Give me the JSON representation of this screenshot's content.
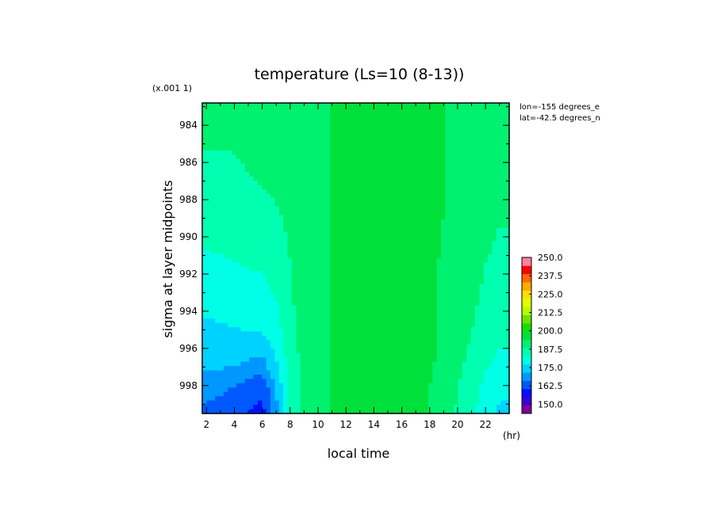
{
  "chart_data": {
    "type": "heatmap",
    "title": "temperature (Ls=10 (8-13))",
    "xlabel": "local time",
    "x_unit": "(hr)",
    "ylabel": "sigma at layer midpoints",
    "y_scale_note": "(x.001 1)",
    "annotations": [
      "lon=-155 degrees_e",
      "lat=-42.5 degrees_n"
    ],
    "x_ticks": [
      "2",
      "4",
      "6",
      "8",
      "10",
      "12",
      "14",
      "16",
      "18",
      "20",
      "22"
    ],
    "y_ticks": [
      "984",
      "986",
      "988",
      "990",
      "992",
      "994",
      "996",
      "998"
    ],
    "xlim": [
      1.7,
      23.7
    ],
    "ylim": [
      982.8,
      999.5
    ],
    "colorbar": {
      "min": 143.75,
      "max": 250,
      "step": 6.25,
      "labels": [
        "250.0",
        "237.5",
        "225.0",
        "212.5",
        "200.0",
        "187.5",
        "175.0",
        "162.5",
        "150.0"
      ],
      "colors": [
        "#7f00a0",
        "#3f00d0",
        "#0010ff",
        "#0058ff",
        "#0098ff",
        "#00d2ff",
        "#00ffe6",
        "#00ffb0",
        "#00f070",
        "#00e03a",
        "#14e000",
        "#6ee000",
        "#b4ff00",
        "#e0ff00",
        "#ffde00",
        "#ffaa00",
        "#ff6a00",
        "#ff0000",
        "#ff80a0"
      ]
    },
    "x": [
      2,
      4,
      6,
      7,
      8,
      9,
      10,
      11,
      12,
      13,
      14,
      15,
      16,
      17,
      18,
      19,
      20,
      21,
      22,
      23
    ],
    "y": [
      983,
      985,
      987,
      989,
      991,
      993,
      995,
      997,
      998,
      999.5
    ],
    "temperature": [
      [
        194,
        194,
        195,
        196,
        197,
        198,
        199,
        200,
        201,
        202,
        203,
        203,
        203,
        203,
        202,
        200,
        199,
        198,
        197,
        196
      ],
      [
        194,
        194,
        195,
        196,
        197,
        198,
        199,
        200,
        201,
        202,
        203,
        203,
        203,
        203,
        202,
        200,
        199,
        198,
        197,
        196
      ],
      [
        192,
        193,
        194,
        195,
        196,
        198,
        199,
        200,
        201,
        202,
        203,
        203,
        203,
        203,
        202,
        200,
        199,
        198,
        196,
        195
      ],
      [
        190,
        191,
        192,
        193,
        195,
        197,
        199,
        200,
        201,
        202,
        203,
        203,
        203,
        203,
        202,
        200,
        198,
        197,
        195,
        194
      ],
      [
        187,
        188,
        189,
        191,
        194,
        197,
        199,
        200,
        201,
        202,
        203,
        203,
        203,
        203,
        202,
        199,
        198,
        196,
        194,
        193
      ],
      [
        184,
        185,
        186,
        188,
        193,
        197,
        199,
        200,
        201,
        202,
        203,
        203,
        203,
        203,
        201,
        199,
        197,
        195,
        193,
        191
      ],
      [
        180,
        181,
        182,
        185,
        192,
        196,
        199,
        200,
        201,
        202,
        203,
        204,
        204,
        203,
        201,
        199,
        196,
        194,
        191,
        189
      ],
      [
        176,
        175,
        172,
        180,
        190,
        196,
        199,
        200,
        201,
        202,
        203,
        204,
        205,
        203,
        201,
        198,
        195,
        192,
        188,
        186
      ],
      [
        172,
        169,
        164,
        176,
        189,
        196,
        199,
        200,
        201,
        202,
        203,
        204,
        206,
        203,
        200,
        197,
        194,
        190,
        186,
        183
      ],
      [
        167,
        164,
        160,
        173,
        188,
        195,
        199,
        200,
        201,
        202,
        203,
        204,
        206,
        203,
        200,
        197,
        193,
        189,
        184,
        180
      ]
    ]
  }
}
